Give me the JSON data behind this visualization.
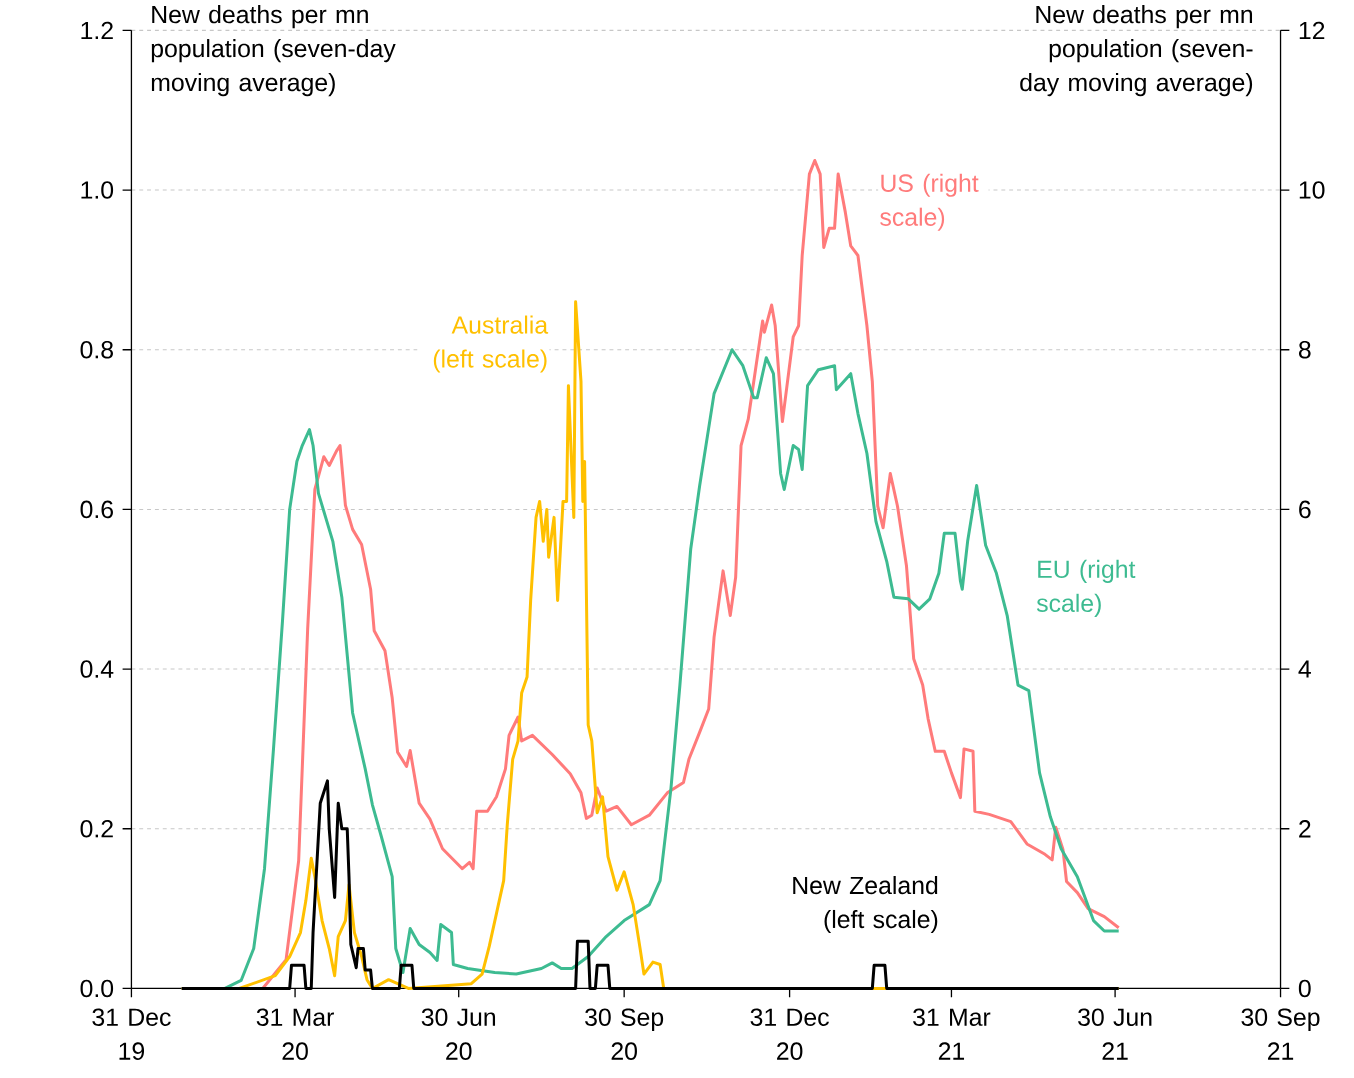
{
  "chart_data": {
    "type": "line",
    "ylabel": "New deaths per mn population (seven-day moving average)",
    "y2label": "New deaths per mn population (seven-day moving average)",
    "series": [
      {
        "name": "US (right scale)",
        "color": "#ff7b7b",
        "axis": "y2",
        "x": [
          "2020-01-28",
          "2020-03-13",
          "2020-03-26",
          "2020-04-02",
          "2020-04-07",
          "2020-04-11",
          "2020-04-16",
          "2020-04-19",
          "2020-04-23",
          "2020-04-25",
          "2020-04-28",
          "2020-05-02",
          "2020-05-07",
          "2020-05-12",
          "2020-05-14",
          "2020-05-20",
          "2020-05-24",
          "2020-05-27",
          "2020-06-01",
          "2020-06-03",
          "2020-06-08",
          "2020-06-14",
          "2020-06-21",
          "2020-07-02",
          "2020-07-06",
          "2020-07-08",
          "2020-07-10",
          "2020-07-16",
          "2020-07-21",
          "2020-07-26",
          "2020-07-28",
          "2020-08-02",
          "2020-08-04",
          "2020-08-10",
          "2020-08-21",
          "2020-08-31",
          "2020-09-06",
          "2020-09-09",
          "2020-09-12",
          "2020-09-15",
          "2020-09-20",
          "2020-09-26",
          "2020-10-04",
          "2020-10-14",
          "2020-10-24",
          "2020-11-02",
          "2020-11-05",
          "2020-11-11",
          "2020-11-16",
          "2020-11-19",
          "2020-11-24",
          "2020-11-28",
          "2020-12-01",
          "2020-12-04",
          "2020-12-08",
          "2020-12-16",
          "2020-12-17",
          "2020-12-21",
          "2020-12-23",
          "2020-12-27",
          "2021-01-02",
          "2021-01-05",
          "2021-01-07",
          "2021-01-11",
          "2021-01-14",
          "2021-01-17",
          "2021-01-19",
          "2021-01-22",
          "2021-01-25",
          "2021-01-27",
          "2021-01-31",
          "2021-02-03",
          "2021-02-07",
          "2021-02-12",
          "2021-02-15",
          "2021-02-18",
          "2021-02-21",
          "2021-02-25",
          "2021-03-01",
          "2021-03-06",
          "2021-03-10",
          "2021-03-15",
          "2021-03-18",
          "2021-03-22",
          "2021-03-27",
          "2021-03-31",
          "2021-04-05",
          "2021-04-07",
          "2021-04-12",
          "2021-04-13",
          "2021-04-21",
          "2021-05-03",
          "2021-05-12",
          "2021-05-22",
          "2021-05-26",
          "2021-05-28",
          "2021-06-01",
          "2021-06-03",
          "2021-06-09",
          "2021-06-15",
          "2021-06-24",
          "2021-07-02"
        ],
        "values": [
          0,
          0,
          0.36,
          1.6,
          4.5,
          6.25,
          6.66,
          6.55,
          6.73,
          6.8,
          6.05,
          5.75,
          5.56,
          5.0,
          4.48,
          4.23,
          3.64,
          2.96,
          2.78,
          2.98,
          2.32,
          2.12,
          1.75,
          1.5,
          1.58,
          1.5,
          2.22,
          2.22,
          2.4,
          2.75,
          3.17,
          3.4,
          3.1,
          3.17,
          2.93,
          2.69,
          2.45,
          2.13,
          2.17,
          2.51,
          2.22,
          2.28,
          2.05,
          2.17,
          2.45,
          2.58,
          2.87,
          3.21,
          3.5,
          4.4,
          5.23,
          4.67,
          5.15,
          6.8,
          7.13,
          8.36,
          8.22,
          8.56,
          8.3,
          7.1,
          8.16,
          8.3,
          9.18,
          10.2,
          10.37,
          10.2,
          9.28,
          9.52,
          9.52,
          10.2,
          9.72,
          9.3,
          9.18,
          8.3,
          7.6,
          6.04,
          5.77,
          6.45,
          6.04,
          5.29,
          4.13,
          3.8,
          3.38,
          2.97,
          2.97,
          2.7,
          2.39,
          3.0,
          2.97,
          2.22,
          2.18,
          2.09,
          1.81,
          1.68,
          1.61,
          2.02,
          1.74,
          1.34,
          1.2,
          1.0,
          0.9,
          0.76
        ]
      },
      {
        "name": "EU (right scale)",
        "color": "#3dbb91",
        "axis": "y2",
        "x": [
          "2020-01-28",
          "2020-02-21",
          "2020-03-01",
          "2020-03-08",
          "2020-03-14",
          "2020-03-19",
          "2020-03-24",
          "2020-03-28",
          "2020-04-01",
          "2020-04-04",
          "2020-04-08",
          "2020-04-10",
          "2020-04-13",
          "2020-04-17",
          "2020-04-21",
          "2020-04-26",
          "2020-05-02",
          "2020-05-09",
          "2020-05-13",
          "2020-05-18",
          "2020-05-24",
          "2020-05-26",
          "2020-05-30",
          "2020-06-03",
          "2020-06-08",
          "2020-06-14",
          "2020-06-18",
          "2020-06-20",
          "2020-06-26",
          "2020-06-27",
          "2020-07-05",
          "2020-07-20",
          "2020-08-01",
          "2020-08-15",
          "2020-08-21",
          "2020-08-26",
          "2020-09-01",
          "2020-09-10",
          "2020-09-20",
          "2020-09-30",
          "2020-10-14",
          "2020-10-20",
          "2020-10-26",
          "2020-10-31",
          "2020-11-06",
          "2020-11-11",
          "2020-11-19",
          "2020-11-29",
          "2020-12-05",
          "2020-12-11",
          "2020-12-13",
          "2020-12-18",
          "2020-12-22",
          "2020-12-26",
          "2020-12-28",
          "2021-01-02",
          "2021-01-05",
          "2021-01-07",
          "2021-01-10",
          "2021-01-16",
          "2021-01-25",
          "2021-01-26",
          "2021-02-03",
          "2021-02-07",
          "2021-02-12",
          "2021-02-17",
          "2021-02-23",
          "2021-02-27",
          "2021-03-07",
          "2021-03-13",
          "2021-03-19",
          "2021-03-24",
          "2021-03-27",
          "2021-04-02",
          "2021-04-05",
          "2021-04-06",
          "2021-04-09",
          "2021-04-14",
          "2021-04-19",
          "2021-04-25",
          "2021-05-01",
          "2021-05-07",
          "2021-05-13",
          "2021-05-19",
          "2021-05-25",
          "2021-05-31",
          "2021-06-09",
          "2021-06-18",
          "2021-06-24",
          "2021-07-02"
        ],
        "values": [
          0,
          0,
          0.1,
          0.5,
          1.5,
          3.0,
          4.6,
          6.0,
          6.6,
          6.8,
          7.0,
          6.8,
          6.2,
          5.9,
          5.6,
          4.9,
          3.45,
          2.75,
          2.3,
          1.9,
          1.4,
          0.5,
          0.2,
          0.75,
          0.55,
          0.45,
          0.35,
          0.8,
          0.7,
          0.3,
          0.25,
          0.2,
          0.18,
          0.25,
          0.32,
          0.25,
          0.25,
          0.4,
          0.65,
          0.85,
          1.05,
          1.35,
          2.5,
          3.8,
          5.5,
          6.3,
          7.45,
          8.0,
          7.8,
          7.4,
          7.4,
          7.9,
          7.7,
          6.45,
          6.25,
          6.8,
          6.75,
          6.5,
          7.55,
          7.75,
          7.8,
          7.5,
          7.7,
          7.2,
          6.7,
          5.85,
          5.35,
          4.9,
          4.88,
          4.75,
          4.88,
          5.2,
          5.7,
          5.7,
          5.1,
          5.0,
          5.6,
          6.3,
          5.55,
          5.2,
          4.67,
          3.8,
          3.73,
          2.7,
          2.15,
          1.75,
          1.4,
          0.85,
          0.72,
          0.72
        ]
      },
      {
        "name": "Australia (left scale)",
        "color": "#ffc000",
        "x": [
          "2020-01-28",
          "2020-02-29",
          "2020-03-20",
          "2020-03-28",
          "2020-04-03",
          "2020-04-06",
          "2020-04-09",
          "2020-04-11",
          "2020-04-15",
          "2020-04-19",
          "2020-04-22",
          "2020-04-24",
          "2020-04-28",
          "2020-04-30",
          "2020-05-03",
          "2020-05-07",
          "2020-05-10",
          "2020-05-13",
          "2020-05-22",
          "2020-06-02",
          "2020-07-07",
          "2020-07-13",
          "2020-07-17",
          "2020-07-21",
          "2020-07-25",
          "2020-07-27",
          "2020-07-30",
          "2020-08-02",
          "2020-08-04",
          "2020-08-07",
          "2020-08-09",
          "2020-08-12",
          "2020-08-14",
          "2020-08-16",
          "2020-08-18",
          "2020-08-19",
          "2020-08-22",
          "2020-08-24",
          "2020-08-27",
          "2020-08-29",
          "2020-08-30",
          "2020-09-02",
          "2020-09-03",
          "2020-09-06",
          "2020-09-07",
          "2020-09-08",
          "2020-09-10",
          "2020-09-12",
          "2020-09-15",
          "2020-09-18",
          "2020-09-21",
          "2020-09-26",
          "2020-09-30",
          "2020-10-05",
          "2020-10-09",
          "2020-10-11",
          "2020-10-16",
          "2020-10-20",
          "2020-10-22",
          "2021-07-02"
        ],
        "values": [
          0,
          0,
          0.016,
          0.04,
          0.07,
          0.11,
          0.163,
          0.14,
          0.085,
          0.05,
          0.016,
          0.065,
          0.085,
          0.13,
          0.07,
          0.04,
          0.011,
          0,
          0.011,
          0,
          0.006,
          0.018,
          0.053,
          0.094,
          0.135,
          0.205,
          0.287,
          0.31,
          0.37,
          0.39,
          0.486,
          0.59,
          0.61,
          0.56,
          0.6,
          0.54,
          0.59,
          0.486,
          0.61,
          0.61,
          0.755,
          0.59,
          0.86,
          0.76,
          0.61,
          0.66,
          0.33,
          0.31,
          0.22,
          0.24,
          0.165,
          0.123,
          0.146,
          0.105,
          0.048,
          0.018,
          0.033,
          0.03,
          0,
          0
        ]
      },
      {
        "name": "New Zealand (left scale)",
        "color": "#000000",
        "x": [
          "2020-01-28",
          "2020-03-28",
          "2020-03-29",
          "2020-04-05",
          "2020-04-06",
          "2020-04-09",
          "2020-04-10",
          "2020-04-14",
          "2020-04-18",
          "2020-04-19",
          "2020-04-22",
          "2020-04-24",
          "2020-04-26",
          "2020-04-29",
          "2020-04-30",
          "2020-05-01",
          "2020-05-04",
          "2020-05-05",
          "2020-05-08",
          "2020-05-09",
          "2020-05-12",
          "2020-05-13",
          "2020-05-28",
          "2020-05-29",
          "2020-06-04",
          "2020-06-05",
          "2020-09-03",
          "2020-09-04",
          "2020-09-10",
          "2020-09-11",
          "2020-09-14",
          "2020-09-15",
          "2020-09-21",
          "2020-09-22",
          "2021-02-15",
          "2021-02-16",
          "2021-02-22",
          "2021-02-23",
          "2021-07-02"
        ],
        "values": [
          0,
          0,
          0.029,
          0.029,
          0,
          0,
          0.07,
          0.232,
          0.26,
          0.2,
          0.114,
          0.232,
          0.2,
          0.2,
          0.139,
          0.055,
          0.026,
          0.05,
          0.05,
          0.023,
          0.023,
          0,
          0,
          0.029,
          0.029,
          0,
          0,
          0.059,
          0.059,
          0,
          0,
          0.029,
          0.029,
          0,
          0,
          0.029,
          0.029,
          0,
          0
        ]
      }
    ],
    "xlim": [
      "2019-12-31",
      "2021-09-30"
    ],
    "xticks": [
      {
        "value": "2019-12-31",
        "label": "31 Dec 19"
      },
      {
        "value": "2020-03-31",
        "label": "31 Mar 20"
      },
      {
        "value": "2020-06-30",
        "label": "30 Jun 20"
      },
      {
        "value": "2020-09-30",
        "label": "30 Sep 20"
      },
      {
        "value": "2020-12-31",
        "label": "31 Dec 20"
      },
      {
        "value": "2021-03-31",
        "label": "31 Mar 21"
      },
      {
        "value": "2021-06-30",
        "label": "30 Jun 21"
      },
      {
        "value": "2021-09-30",
        "label": "30 Sep 21"
      }
    ],
    "ylim": [
      0,
      1.2
    ],
    "yticks": [
      {
        "value": 0,
        "label": "0.0"
      },
      {
        "value": 0.2,
        "label": "0.2"
      },
      {
        "value": 0.4,
        "label": "0.4"
      },
      {
        "value": 0.6,
        "label": "0.6"
      },
      {
        "value": 0.8,
        "label": "0.8"
      },
      {
        "value": 1.0,
        "label": "1.0"
      },
      {
        "value": 1.2,
        "label": "1.2"
      }
    ],
    "y2lim": [
      0,
      12
    ],
    "y2ticks": [
      0,
      2,
      4,
      6,
      8,
      10,
      12
    ],
    "grid": "y"
  }
}
